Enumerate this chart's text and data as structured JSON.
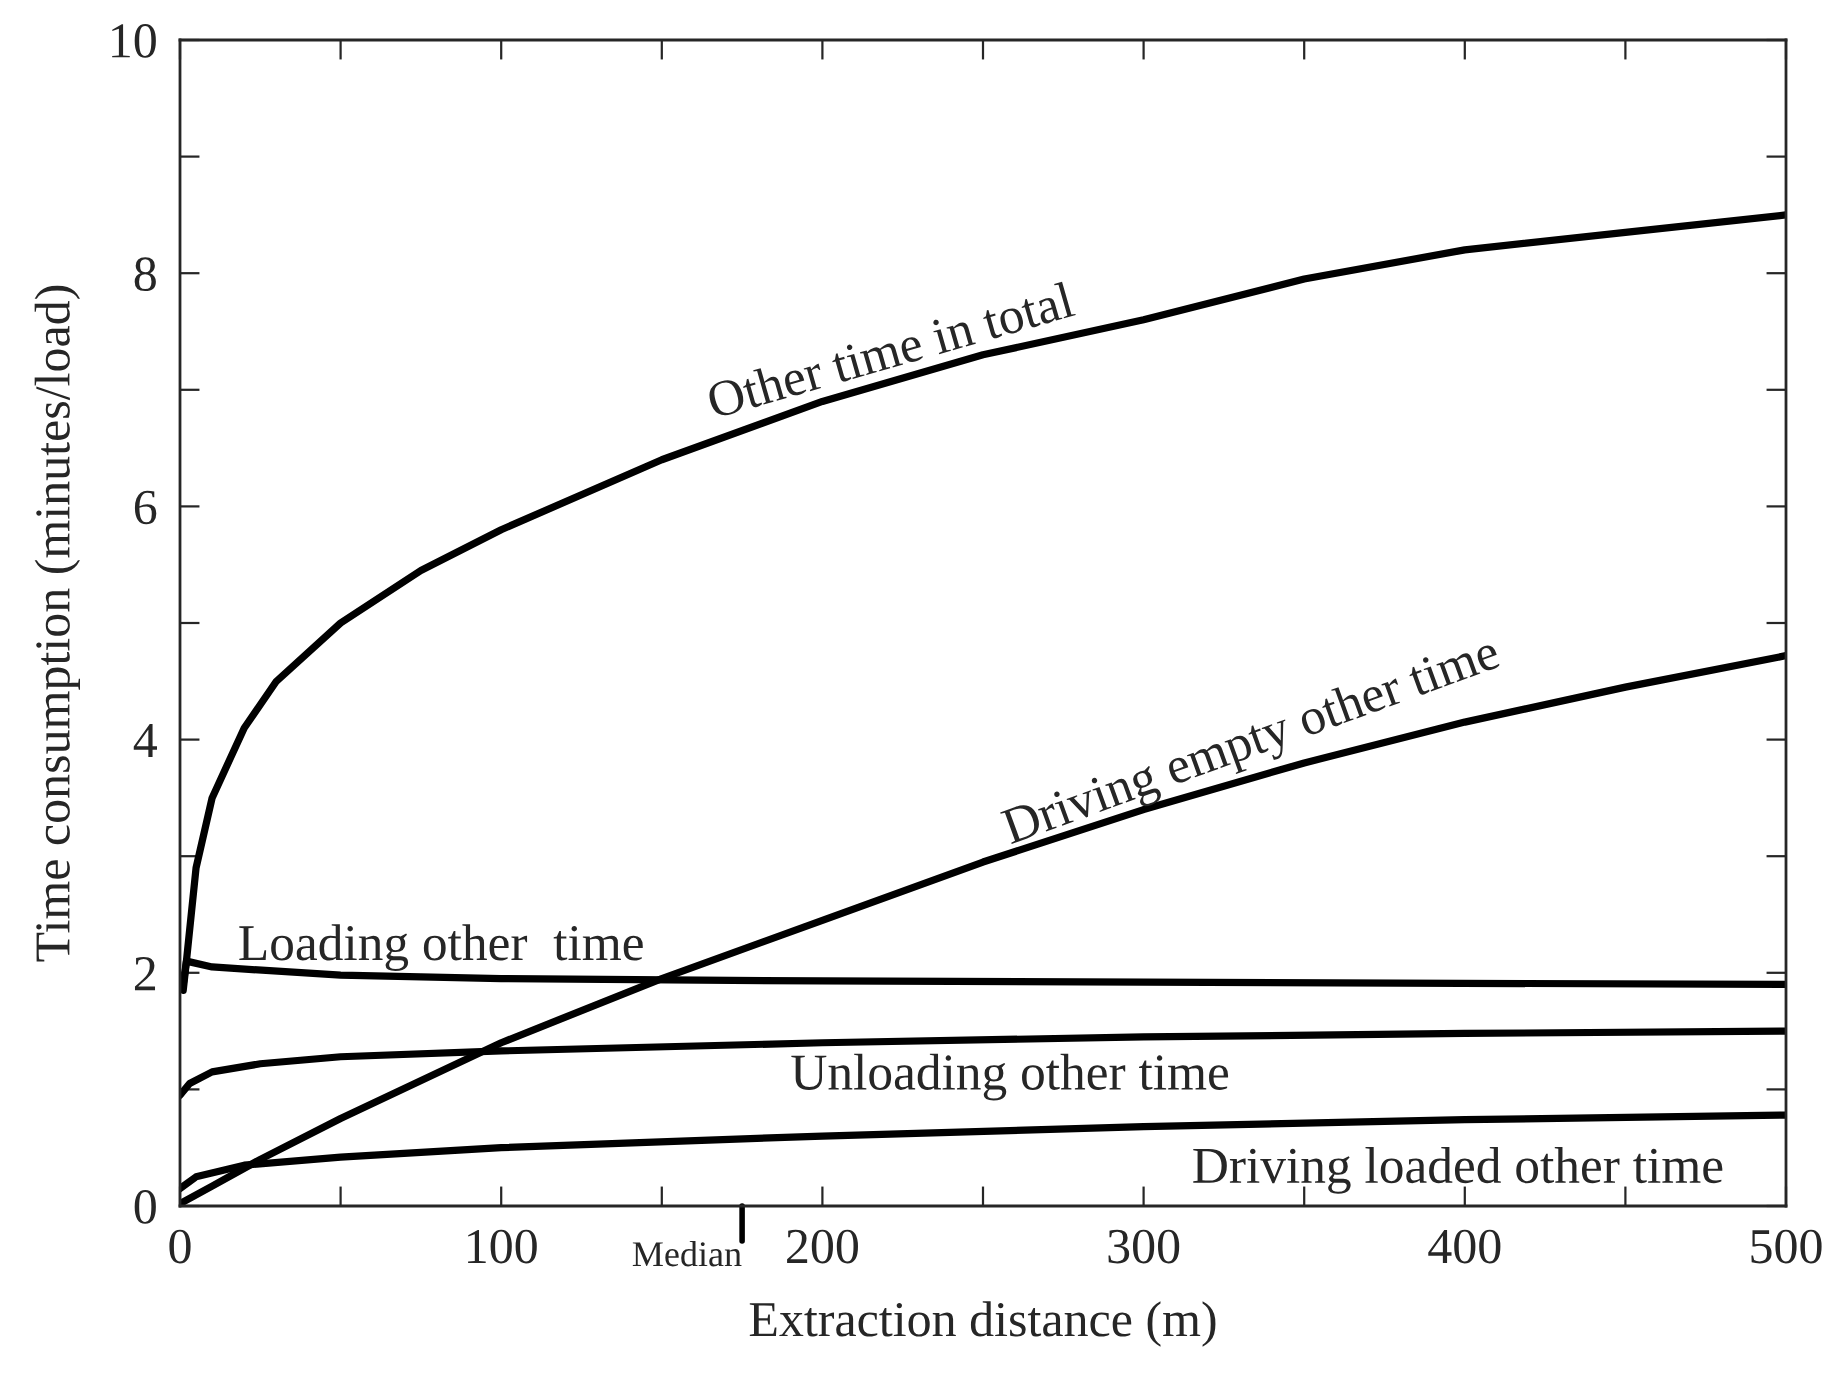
{
  "chart_data": {
    "type": "line",
    "xlabel": "Extraction distance (m)",
    "ylabel": "Time consumption (minutes/load)",
    "xlim": [
      0,
      500
    ],
    "ylim": [
      0,
      10
    ],
    "xticks": [
      0,
      {
        "value": 50,
        "label": null
      },
      100,
      {
        "value": 150,
        "label": null
      },
      200,
      {
        "value": 250,
        "label": null
      },
      300,
      {
        "value": 350,
        "label": null
      },
      400,
      {
        "value": 450,
        "label": null
      },
      500
    ],
    "yticks": [
      0,
      {
        "value": 1,
        "label": null
      },
      2,
      {
        "value": 3,
        "label": null
      },
      4,
      {
        "value": 5,
        "label": null
      },
      6,
      {
        "value": 7,
        "label": null
      },
      8,
      {
        "value": 9,
        "label": null
      },
      10
    ],
    "grid": false,
    "legend": false,
    "marker": "none",
    "line_style": "solid",
    "ref_lines": [
      {
        "axis": "x",
        "value": 175,
        "label": "Median"
      }
    ],
    "series": [
      {
        "name": "Other time in total",
        "color": "#000000",
        "x": [
          1,
          2,
          5,
          10,
          20,
          30,
          50,
          75,
          100,
          150,
          200,
          250,
          300,
          350,
          400,
          450,
          500
        ],
        "values": [
          1.9,
          2.1,
          2.9,
          3.5,
          4.1,
          4.5,
          5.0,
          5.45,
          5.8,
          6.4,
          6.9,
          7.3,
          7.6,
          7.95,
          8.2,
          8.35,
          8.5
        ]
      },
      {
        "name": "Driving empty other time",
        "color": "#000000",
        "x": [
          0,
          10,
          25,
          50,
          100,
          150,
          200,
          250,
          300,
          350,
          400,
          450,
          500
        ],
        "values": [
          0.02,
          0.17,
          0.4,
          0.75,
          1.4,
          1.95,
          2.45,
          2.95,
          3.4,
          3.8,
          4.15,
          4.45,
          4.72
        ]
      },
      {
        "name": "Loading other  time",
        "color": "#000000",
        "x": [
          1,
          2,
          10,
          50,
          100,
          200,
          300,
          500
        ],
        "values": [
          1.85,
          2.1,
          2.05,
          1.98,
          1.95,
          1.93,
          1.92,
          1.9
        ]
      },
      {
        "name": "Unloading other time",
        "color": "#000000",
        "x": [
          0,
          3,
          10,
          25,
          50,
          100,
          200,
          300,
          400,
          500
        ],
        "values": [
          0.95,
          1.05,
          1.15,
          1.22,
          1.28,
          1.33,
          1.4,
          1.45,
          1.48,
          1.5
        ]
      },
      {
        "name": "Driving loaded other time",
        "color": "#000000",
        "x": [
          0,
          5,
          20,
          50,
          100,
          200,
          300,
          400,
          500
        ],
        "values": [
          0.15,
          0.25,
          0.35,
          0.42,
          0.5,
          0.6,
          0.68,
          0.74,
          0.78
        ]
      }
    ]
  }
}
